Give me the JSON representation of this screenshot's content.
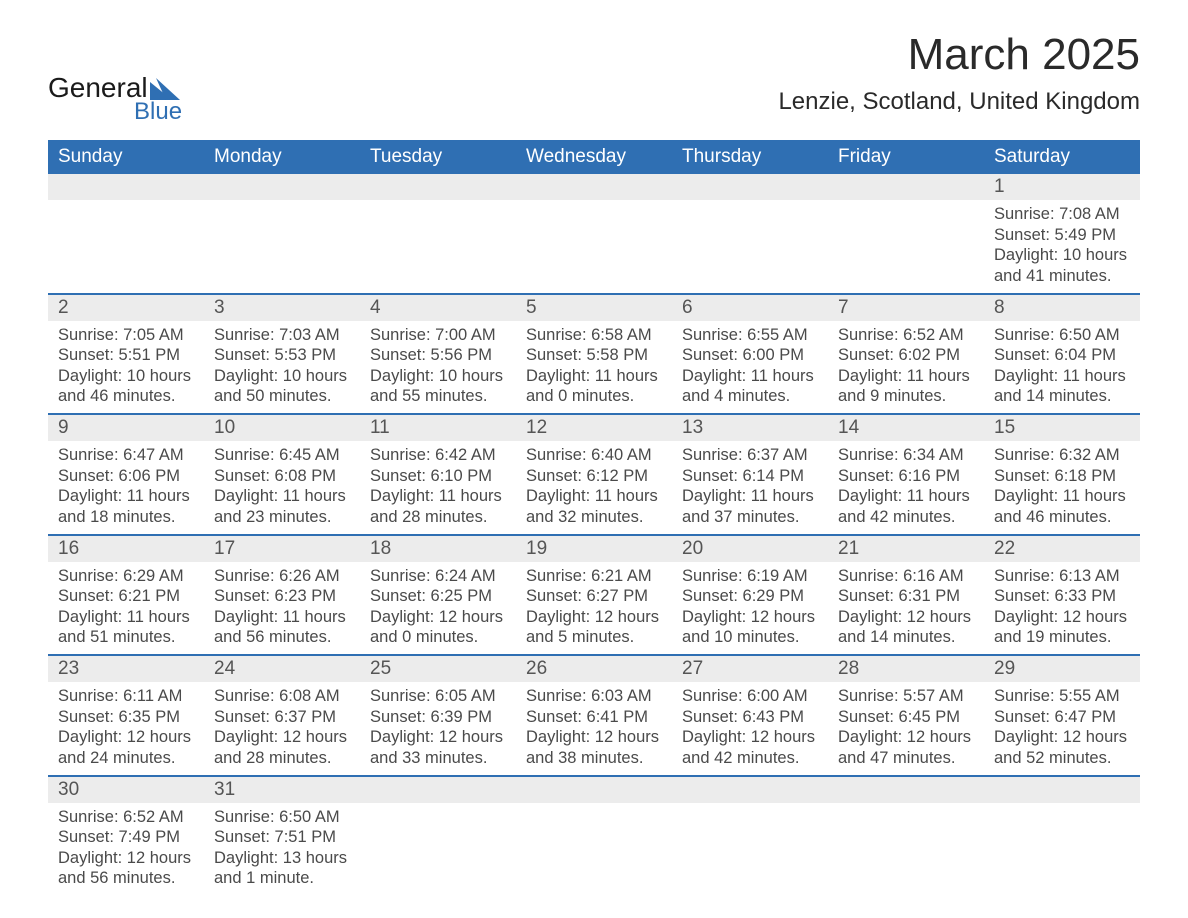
{
  "logo": {
    "text_general": "General",
    "text_blue": "Blue",
    "shape_color": "#2f6fb3",
    "text_color_dark": "#1a1a1a",
    "text_color_blue": "#2f6fb3"
  },
  "title": "March 2025",
  "location": "Lenzie, Scotland, United Kingdom",
  "styling": {
    "header_bg": "#2f6fb3",
    "header_text": "#ffffff",
    "daynum_bg": "#ececec",
    "daynum_text": "#555555",
    "body_text": "#4a4a4a",
    "week_separator": "#2f6fb3",
    "page_bg": "#ffffff",
    "month_title_fontsize": 44,
    "location_fontsize": 24,
    "header_cell_fontsize": 19,
    "daynum_fontsize": 19,
    "daycell_fontsize": 16.5
  },
  "day_headers": [
    "Sunday",
    "Monday",
    "Tuesday",
    "Wednesday",
    "Thursday",
    "Friday",
    "Saturday"
  ],
  "weeks": [
    {
      "days": [
        {
          "num": "",
          "lines": []
        },
        {
          "num": "",
          "lines": []
        },
        {
          "num": "",
          "lines": []
        },
        {
          "num": "",
          "lines": []
        },
        {
          "num": "",
          "lines": []
        },
        {
          "num": "",
          "lines": []
        },
        {
          "num": "1",
          "lines": [
            "Sunrise: 7:08 AM",
            "Sunset: 5:49 PM",
            "Daylight: 10 hours",
            "and 41 minutes."
          ]
        }
      ]
    },
    {
      "days": [
        {
          "num": "2",
          "lines": [
            "Sunrise: 7:05 AM",
            "Sunset: 5:51 PM",
            "Daylight: 10 hours",
            "and 46 minutes."
          ]
        },
        {
          "num": "3",
          "lines": [
            "Sunrise: 7:03 AM",
            "Sunset: 5:53 PM",
            "Daylight: 10 hours",
            "and 50 minutes."
          ]
        },
        {
          "num": "4",
          "lines": [
            "Sunrise: 7:00 AM",
            "Sunset: 5:56 PM",
            "Daylight: 10 hours",
            "and 55 minutes."
          ]
        },
        {
          "num": "5",
          "lines": [
            "Sunrise: 6:58 AM",
            "Sunset: 5:58 PM",
            "Daylight: 11 hours",
            "and 0 minutes."
          ]
        },
        {
          "num": "6",
          "lines": [
            "Sunrise: 6:55 AM",
            "Sunset: 6:00 PM",
            "Daylight: 11 hours",
            "and 4 minutes."
          ]
        },
        {
          "num": "7",
          "lines": [
            "Sunrise: 6:52 AM",
            "Sunset: 6:02 PM",
            "Daylight: 11 hours",
            "and 9 minutes."
          ]
        },
        {
          "num": "8",
          "lines": [
            "Sunrise: 6:50 AM",
            "Sunset: 6:04 PM",
            "Daylight: 11 hours",
            "and 14 minutes."
          ]
        }
      ]
    },
    {
      "days": [
        {
          "num": "9",
          "lines": [
            "Sunrise: 6:47 AM",
            "Sunset: 6:06 PM",
            "Daylight: 11 hours",
            "and 18 minutes."
          ]
        },
        {
          "num": "10",
          "lines": [
            "Sunrise: 6:45 AM",
            "Sunset: 6:08 PM",
            "Daylight: 11 hours",
            "and 23 minutes."
          ]
        },
        {
          "num": "11",
          "lines": [
            "Sunrise: 6:42 AM",
            "Sunset: 6:10 PM",
            "Daylight: 11 hours",
            "and 28 minutes."
          ]
        },
        {
          "num": "12",
          "lines": [
            "Sunrise: 6:40 AM",
            "Sunset: 6:12 PM",
            "Daylight: 11 hours",
            "and 32 minutes."
          ]
        },
        {
          "num": "13",
          "lines": [
            "Sunrise: 6:37 AM",
            "Sunset: 6:14 PM",
            "Daylight: 11 hours",
            "and 37 minutes."
          ]
        },
        {
          "num": "14",
          "lines": [
            "Sunrise: 6:34 AM",
            "Sunset: 6:16 PM",
            "Daylight: 11 hours",
            "and 42 minutes."
          ]
        },
        {
          "num": "15",
          "lines": [
            "Sunrise: 6:32 AM",
            "Sunset: 6:18 PM",
            "Daylight: 11 hours",
            "and 46 minutes."
          ]
        }
      ]
    },
    {
      "days": [
        {
          "num": "16",
          "lines": [
            "Sunrise: 6:29 AM",
            "Sunset: 6:21 PM",
            "Daylight: 11 hours",
            "and 51 minutes."
          ]
        },
        {
          "num": "17",
          "lines": [
            "Sunrise: 6:26 AM",
            "Sunset: 6:23 PM",
            "Daylight: 11 hours",
            "and 56 minutes."
          ]
        },
        {
          "num": "18",
          "lines": [
            "Sunrise: 6:24 AM",
            "Sunset: 6:25 PM",
            "Daylight: 12 hours",
            "and 0 minutes."
          ]
        },
        {
          "num": "19",
          "lines": [
            "Sunrise: 6:21 AM",
            "Sunset: 6:27 PM",
            "Daylight: 12 hours",
            "and 5 minutes."
          ]
        },
        {
          "num": "20",
          "lines": [
            "Sunrise: 6:19 AM",
            "Sunset: 6:29 PM",
            "Daylight: 12 hours",
            "and 10 minutes."
          ]
        },
        {
          "num": "21",
          "lines": [
            "Sunrise: 6:16 AM",
            "Sunset: 6:31 PM",
            "Daylight: 12 hours",
            "and 14 minutes."
          ]
        },
        {
          "num": "22",
          "lines": [
            "Sunrise: 6:13 AM",
            "Sunset: 6:33 PM",
            "Daylight: 12 hours",
            "and 19 minutes."
          ]
        }
      ]
    },
    {
      "days": [
        {
          "num": "23",
          "lines": [
            "Sunrise: 6:11 AM",
            "Sunset: 6:35 PM",
            "Daylight: 12 hours",
            "and 24 minutes."
          ]
        },
        {
          "num": "24",
          "lines": [
            "Sunrise: 6:08 AM",
            "Sunset: 6:37 PM",
            "Daylight: 12 hours",
            "and 28 minutes."
          ]
        },
        {
          "num": "25",
          "lines": [
            "Sunrise: 6:05 AM",
            "Sunset: 6:39 PM",
            "Daylight: 12 hours",
            "and 33 minutes."
          ]
        },
        {
          "num": "26",
          "lines": [
            "Sunrise: 6:03 AM",
            "Sunset: 6:41 PM",
            "Daylight: 12 hours",
            "and 38 minutes."
          ]
        },
        {
          "num": "27",
          "lines": [
            "Sunrise: 6:00 AM",
            "Sunset: 6:43 PM",
            "Daylight: 12 hours",
            "and 42 minutes."
          ]
        },
        {
          "num": "28",
          "lines": [
            "Sunrise: 5:57 AM",
            "Sunset: 6:45 PM",
            "Daylight: 12 hours",
            "and 47 minutes."
          ]
        },
        {
          "num": "29",
          "lines": [
            "Sunrise: 5:55 AM",
            "Sunset: 6:47 PM",
            "Daylight: 12 hours",
            "and 52 minutes."
          ]
        }
      ]
    },
    {
      "days": [
        {
          "num": "30",
          "lines": [
            "Sunrise: 6:52 AM",
            "Sunset: 7:49 PM",
            "Daylight: 12 hours",
            "and 56 minutes."
          ]
        },
        {
          "num": "31",
          "lines": [
            "Sunrise: 6:50 AM",
            "Sunset: 7:51 PM",
            "Daylight: 13 hours",
            "and 1 minute."
          ]
        },
        {
          "num": "",
          "lines": []
        },
        {
          "num": "",
          "lines": []
        },
        {
          "num": "",
          "lines": []
        },
        {
          "num": "",
          "lines": []
        },
        {
          "num": "",
          "lines": []
        }
      ]
    }
  ]
}
